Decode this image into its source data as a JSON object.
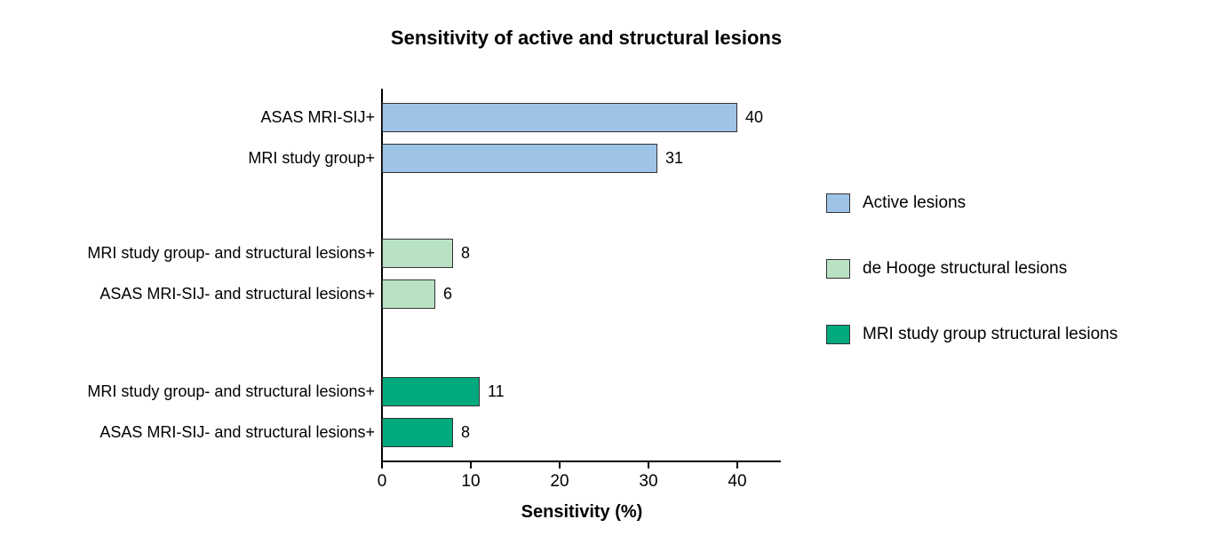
{
  "chart_data": {
    "type": "bar",
    "orientation": "horizontal",
    "title": "Sensitivity of active and structural lesions",
    "xlabel": "Sensitivity (%)",
    "xlim": [
      0,
      45
    ],
    "xticks": [
      0,
      10,
      20,
      30,
      40
    ],
    "grid": false,
    "legend_position": "right",
    "groups": [
      {
        "name": "Active lesions",
        "color": "#9DC3E6",
        "bars": [
          {
            "label": "ASAS MRI-SIJ+",
            "value": 40
          },
          {
            "label": "MRI study group+",
            "value": 31
          }
        ]
      },
      {
        "name": "de Hooge structural lesions",
        "color": "#B9E2C5",
        "bars": [
          {
            "label": "MRI study group- and structural lesions+",
            "value": 8
          },
          {
            "label": "ASAS MRI-SIJ- and structural lesions+",
            "value": 6
          }
        ]
      },
      {
        "name": "MRI study group structural lesions",
        "color": "#00A97E",
        "bars": [
          {
            "label": "MRI study group- and structural lesions+",
            "value": 11
          },
          {
            "label": "ASAS MRI-SIJ- and structural lesions+",
            "value": 8
          }
        ]
      }
    ],
    "legend": [
      {
        "label": "Active lesions",
        "color": "#9DC3E6"
      },
      {
        "label": "de Hooge structural lesions",
        "color": "#B9E2C5"
      },
      {
        "label": "MRI study group structural lesions",
        "color": "#00A97E"
      }
    ]
  }
}
